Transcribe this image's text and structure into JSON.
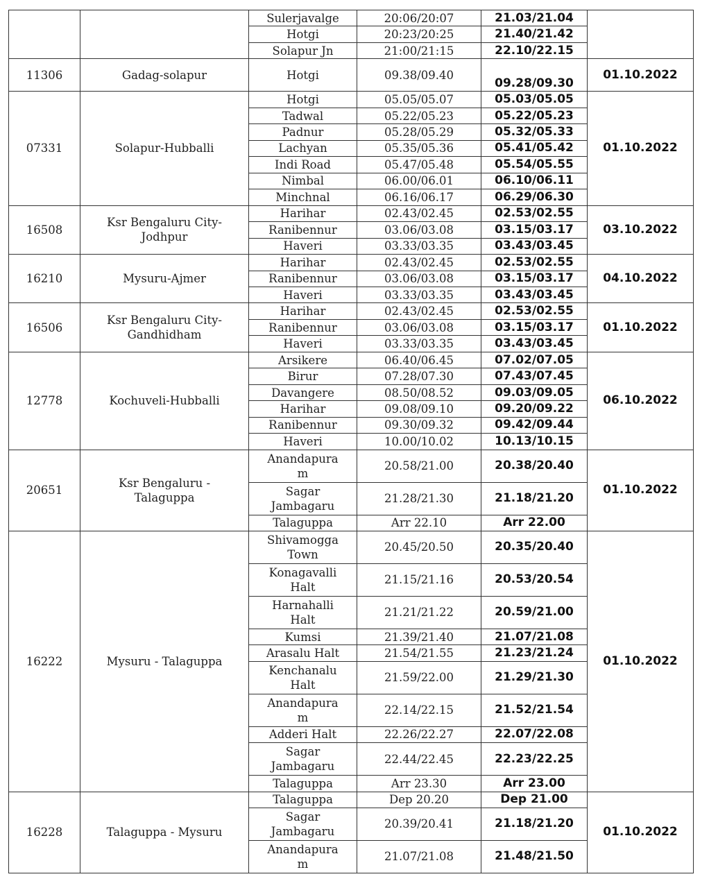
{
  "groups": [
    {
      "train": "",
      "route": "",
      "date": "",
      "stops": [
        {
          "station": "Sulerjavalge",
          "old": "20:06/20:07",
          "new": "21.03/21.04"
        },
        {
          "station": "Hotgi",
          "old": "20:23/20:25",
          "new": "21.40/21.42"
        },
        {
          "station": "Solapur Jn",
          "old": "21:00/21:15",
          "new": "22.10/22.15"
        }
      ]
    },
    {
      "train": "11306",
      "route": "Gadag-solapur",
      "date": "01.10.2022",
      "stops": [
        {
          "station": "Hotgi",
          "old": "09.38/09.40",
          "new": "09.28/09.30",
          "h": 2
        }
      ]
    },
    {
      "train": "07331",
      "route": "Solapur-Hubballi",
      "date": "01.10.2022",
      "stops": [
        {
          "station": "Hotgi",
          "old": "05.05/05.07",
          "new": "05.03/05.05"
        },
        {
          "station": "Tadwal",
          "old": "05.22/05.23",
          "new": "05.22/05.23"
        },
        {
          "station": "Padnur",
          "old": "05.28/05.29",
          "new": "05.32/05.33"
        },
        {
          "station": "Lachyan",
          "old": "05.35/05.36",
          "new": "05.41/05.42"
        },
        {
          "station": "Indi Road",
          "old": "05.47/05.48",
          "new": "05.54/05.55"
        },
        {
          "station": "Nimbal",
          "old": "06.00/06.01",
          "new": "06.10/06.11"
        },
        {
          "station": "Minchnal",
          "old": "06.16/06.17",
          "new": "06.29/06.30"
        }
      ]
    },
    {
      "train": "16508",
      "route": "Ksr Bengaluru City-\nJodhpur",
      "date": "03.10.2022",
      "stops": [
        {
          "station": "Harihar",
          "old": "02.43/02.45",
          "new": "02.53/02.55"
        },
        {
          "station": "Ranibennur",
          "old": "03.06/03.08",
          "new": "03.15/03.17"
        },
        {
          "station": "Haveri",
          "old": "03.33/03.35",
          "new": "03.43/03.45"
        }
      ]
    },
    {
      "train": "16210",
      "route": "Mysuru-Ajmer",
      "date": "04.10.2022",
      "stops": [
        {
          "station": "Harihar",
          "old": "02.43/02.45",
          "new": "02.53/02.55"
        },
        {
          "station": "Ranibennur",
          "old": "03.06/03.08",
          "new": "03.15/03.17"
        },
        {
          "station": "Haveri",
          "old": "03.33/03.35",
          "new": "03.43/03.45"
        }
      ]
    },
    {
      "train": "16506",
      "route": "Ksr Bengaluru City-\nGandhidham",
      "date": "01.10.2022",
      "stops": [
        {
          "station": "Harihar",
          "old": "02.43/02.45",
          "new": "02.53/02.55"
        },
        {
          "station": "Ranibennur",
          "old": "03.06/03.08",
          "new": "03.15/03.17"
        },
        {
          "station": "Haveri",
          "old": "03.33/03.35",
          "new": "03.43/03.45"
        }
      ]
    },
    {
      "train": "12778",
      "route": "Kochuveli-Hubballi",
      "date": "06.10.2022",
      "stops": [
        {
          "station": "Arsikere",
          "old": "06.40/06.45",
          "new": "07.02/07.05"
        },
        {
          "station": "Birur",
          "old": "07.28/07.30",
          "new": "07.43/07.45"
        },
        {
          "station": "Davangere",
          "old": "08.50/08.52",
          "new": "09.03/09.05"
        },
        {
          "station": "Harihar",
          "old": "09.08/09.10",
          "new": "09.20/09.22"
        },
        {
          "station": "Ranibennur",
          "old": "09.30/09.32",
          "new": "09.42/09.44"
        },
        {
          "station": "Haveri",
          "old": "10.00/10.02",
          "new": "10.13/10.15"
        }
      ]
    },
    {
      "train": "20651",
      "route": "Ksr Bengaluru -\nTalaguppa",
      "date": "01.10.2022",
      "stops": [
        {
          "station": "Anandapura\nm",
          "old": "20.58/21.00",
          "new": "20.38/20.40",
          "h": 2
        },
        {
          "station": "Sagar\nJambagaru",
          "old": "21.28/21.30",
          "new": "21.18/21.20",
          "h": 2
        },
        {
          "station": "Talaguppa",
          "old": "Arr 22.10",
          "new": "Arr 22.00"
        }
      ]
    },
    {
      "train": "16222",
      "route": "Mysuru - Talaguppa",
      "date": "01.10.2022",
      "stops": [
        {
          "station": "Shivamogga\nTown",
          "old": "20.45/20.50",
          "new": "20.35/20.40",
          "h": 2
        },
        {
          "station": "Konagavalli\nHalt",
          "old": "21.15/21.16",
          "new": "20.53/20.54",
          "h": 2
        },
        {
          "station": "Harnahalli\nHalt",
          "old": "21.21/21.22",
          "new": "20.59/21.00",
          "h": 2
        },
        {
          "station": "Kumsi",
          "old": "21.39/21.40",
          "new": "21.07/21.08"
        },
        {
          "station": "Arasalu Halt",
          "old": "21.54/21.55",
          "new": "21.23/21.24"
        },
        {
          "station": "Kenchanalu\nHalt",
          "old": "21.59/22.00",
          "new": "21.29/21.30",
          "h": 2
        },
        {
          "station": "Anandapura\nm",
          "old": "22.14/22.15",
          "new": "21.52/21.54",
          "h": 2
        },
        {
          "station": "Adderi Halt",
          "old": "22.26/22.27",
          "new": "22.07/22.08"
        },
        {
          "station": "Sagar\nJambagaru",
          "old": "22.44/22.45",
          "new": "22.23/22.25",
          "h": 2
        },
        {
          "station": "Talaguppa",
          "old": "Arr 23.30",
          "new": "Arr 23.00"
        }
      ]
    },
    {
      "train": "16228",
      "route": "Talaguppa - Mysuru",
      "date": "01.10.2022",
      "stops": [
        {
          "station": "Talaguppa",
          "old": "Dep 20.20",
          "new": "Dep 21.00"
        },
        {
          "station": "Sagar\nJambagaru",
          "old": "20.39/20.41",
          "new": "21.18/21.20",
          "h": 2
        },
        {
          "station": "Anandapura\nm",
          "old": "21.07/21.08",
          "new": "21.48/21.50",
          "h": 2
        }
      ]
    }
  ]
}
